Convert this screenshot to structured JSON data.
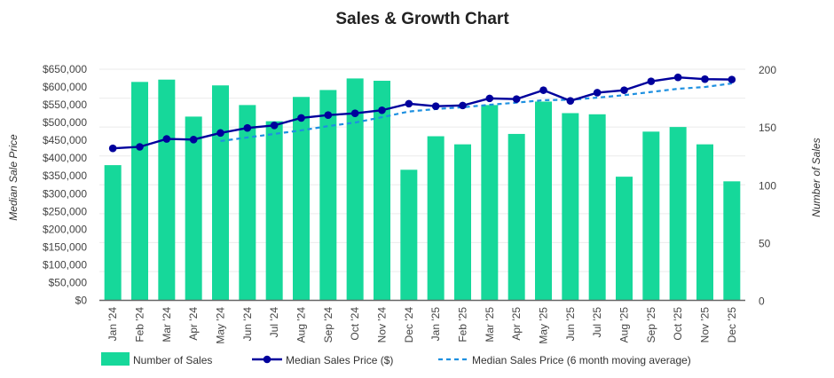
{
  "chart_data": {
    "type": "bar+line",
    "title": "Sales & Growth Chart",
    "ylabel_left": "Median Sale Price",
    "ylabel_right": "Number of Sales",
    "ylim_left": [
      0,
      650000
    ],
    "ylim_right": [
      0,
      200
    ],
    "left_ticks": [
      "$0",
      "$50,000",
      "$100,000",
      "$150,000",
      "$200,000",
      "$250,000",
      "$300,000",
      "$350,000",
      "$400,000",
      "$450,000",
      "$500,000",
      "$550,000",
      "$600,000",
      "$650,000"
    ],
    "right_ticks": [
      "0",
      "50",
      "100",
      "150",
      "200"
    ],
    "categories": [
      "Jan '24",
      "Feb '24",
      "Mar '24",
      "Apr '24",
      "May '24",
      "Jun '24",
      "Jul '24",
      "Aug '24",
      "Sep '24",
      "Oct '24",
      "Nov '24",
      "Dec '24",
      "Jan '25",
      "Feb '25",
      "Mar '25",
      "Apr '25",
      "May '25",
      "Jun '25",
      "Jul '25",
      "Aug '25",
      "Sep '25",
      "Oct '25",
      "Nov '25",
      "Dec '25"
    ],
    "series": [
      {
        "name": "Number of Sales",
        "type": "bar",
        "axis": "right",
        "color": "#16d89a",
        "values": [
          117,
          189,
          191,
          159,
          186,
          169,
          155,
          176,
          182,
          192,
          190,
          113,
          142,
          135,
          169,
          144,
          172,
          162,
          161,
          107,
          146,
          150,
          135,
          103
        ]
      },
      {
        "name": "Median Sales Price ($)",
        "type": "line",
        "axis": "left",
        "color": "#00009c",
        "values": [
          427500,
          431700,
          454000,
          452000,
          470700,
          484800,
          492000,
          513000,
          521000,
          526000,
          534600,
          553000,
          546000,
          548000,
          568000,
          566000,
          591000,
          561000,
          584000,
          591000,
          616000,
          627000,
          622000,
          621000
        ]
      },
      {
        "name": "Median Sales Price (6 month moving average)",
        "type": "dashed-line",
        "axis": "left",
        "color": "#1e90e0",
        "values": [
          null,
          null,
          null,
          null,
          448000,
          458000,
          468000,
          478000,
          490000,
          500000,
          515000,
          531000,
          538000,
          543000,
          550000,
          556000,
          563000,
          564000,
          570000,
          577000,
          586000,
          595000,
          600000,
          610000
        ]
      }
    ],
    "grid": true,
    "legend": "bottom"
  }
}
